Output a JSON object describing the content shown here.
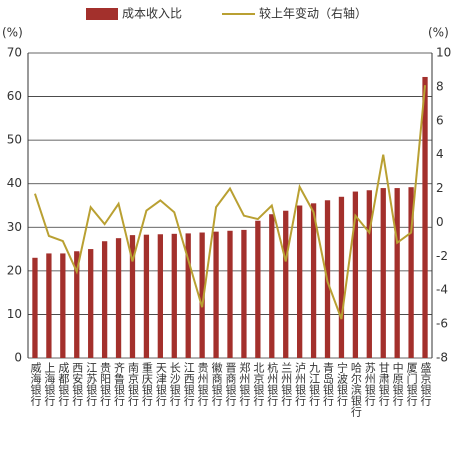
{
  "chart_data": {
    "type": "bar-line",
    "y_label": "(%)",
    "y2_label": "(%)",
    "categories": [
      "威海银行",
      "上海银行",
      "成都银行",
      "西安银行",
      "江苏银行",
      "贵阳银行",
      "齐鲁银行",
      "南京银行",
      "重庆银行",
      "天津银行",
      "长沙银行",
      "江西银行",
      "贵州银行",
      "徽商银行",
      "晋商银行",
      "郑州银行",
      "北京银行",
      "杭州银行",
      "兰州银行",
      "泸州银行",
      "九江银行",
      "青岛银行",
      "宁波银行",
      "哈尔滨银行",
      "苏州银行",
      "甘肃银行",
      "中原银行",
      "厦门银行",
      "盛京银行"
    ],
    "series": [
      {
        "name": "成本收入比",
        "color": "#a3302c",
        "type": "bar",
        "values": [
          23,
          24,
          24,
          24.5,
          25,
          26.8,
          27.5,
          28.2,
          28.3,
          28.4,
          28.5,
          28.6,
          28.8,
          29,
          29.2,
          29.4,
          31.5,
          33,
          33.8,
          35,
          35.5,
          36.2,
          37,
          38.2,
          38.5,
          39,
          39,
          39.2,
          64.5
        ]
      },
      {
        "name": "较上年变动（右轴）",
        "color": "#b9a032",
        "type": "line",
        "axis": "y2",
        "values": [
          1.7,
          -0.8,
          -1.1,
          -2.9,
          0.9,
          -0.1,
          1.1,
          -2.3,
          0.7,
          1.3,
          0.6,
          -2.2,
          -5.0,
          0.9,
          2.0,
          0.4,
          0.2,
          1.0,
          -2.3,
          2.1,
          0.6,
          -3.5,
          -5.7,
          0.4,
          -0.6,
          4.0,
          -1.2,
          -0.6,
          8.1
        ]
      }
    ],
    "ylim": [
      0,
      70
    ],
    "yticks": [
      0,
      10,
      20,
      30,
      40,
      50,
      60,
      70
    ],
    "y2lim": [
      -8,
      10
    ],
    "y2ticks": [
      -8,
      -6,
      -4,
      -2,
      0,
      2,
      4,
      6,
      8,
      10
    ],
    "grid": true
  }
}
